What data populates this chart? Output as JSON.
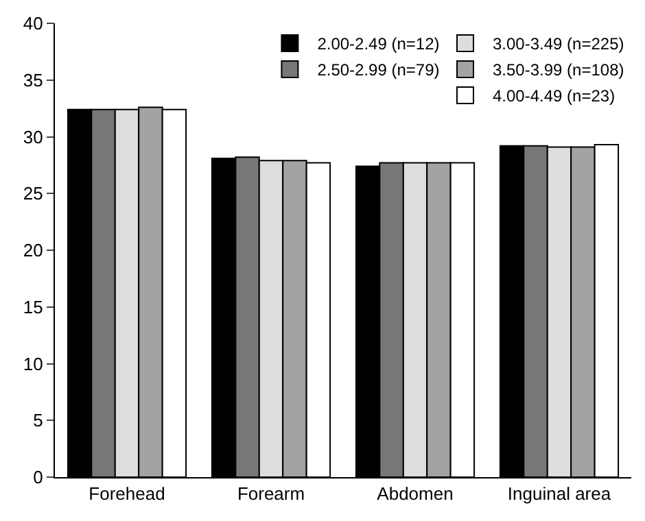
{
  "chart_data": {
    "type": "bar",
    "categories": [
      "Forehead",
      "Forearm",
      "Abdomen",
      "Inguinal area"
    ],
    "series": [
      {
        "name": "2.00-2.49 (n=12)",
        "color": "#000000",
        "values": [
          32.4,
          28.1,
          27.4,
          29.2
        ]
      },
      {
        "name": "2.50-2.99 (n=79)",
        "color": "#777777",
        "values": [
          32.4,
          28.2,
          27.7,
          29.2
        ]
      },
      {
        "name": "3.00-3.49 (n=225)",
        "color": "#dddddd",
        "values": [
          32.4,
          27.9,
          27.7,
          29.1
        ]
      },
      {
        "name": "3.50-3.99 (n=108)",
        "color": "#a3a3a3",
        "values": [
          32.6,
          27.9,
          27.7,
          29.1
        ]
      },
      {
        "name": "4.00-4.49 (n=23)",
        "color": "#ffffff",
        "values": [
          32.4,
          27.7,
          27.7,
          29.3
        ]
      }
    ],
    "ylim": [
      0,
      40
    ],
    "yticks": [
      0,
      5,
      10,
      15,
      20,
      25,
      30,
      35,
      40
    ],
    "legend": "top right"
  }
}
